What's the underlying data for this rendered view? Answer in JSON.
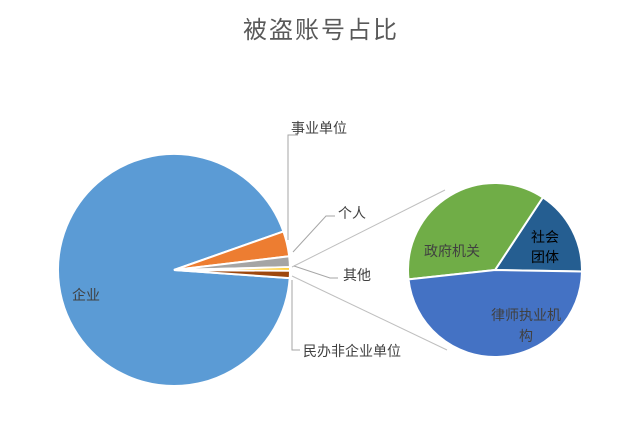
{
  "chart_data": {
    "type": "pie-of-pie",
    "title": "被盗账号占比",
    "primary": [
      {
        "label": "企业",
        "value": 93.5,
        "color": "#5B9BD5"
      },
      {
        "label": "事业单位",
        "value": 3.5,
        "color": "#ED7D31"
      },
      {
        "label": "个人",
        "value": 1.5,
        "color": "#A5A5A5"
      },
      {
        "label": "其他",
        "value": 0.5,
        "color": "#FFC000"
      },
      {
        "label": "民办非企业单位",
        "value": 1.0,
        "color": "#9E480E"
      }
    ],
    "secondary_of": "其他",
    "secondary": [
      {
        "label": "社会团体",
        "value": 16,
        "color": "#255E91"
      },
      {
        "label": "政府机关",
        "value": 36,
        "color": "#70AD47"
      },
      {
        "label": "律师执业机构",
        "value": 48,
        "color": "#4472C4"
      }
    ]
  }
}
